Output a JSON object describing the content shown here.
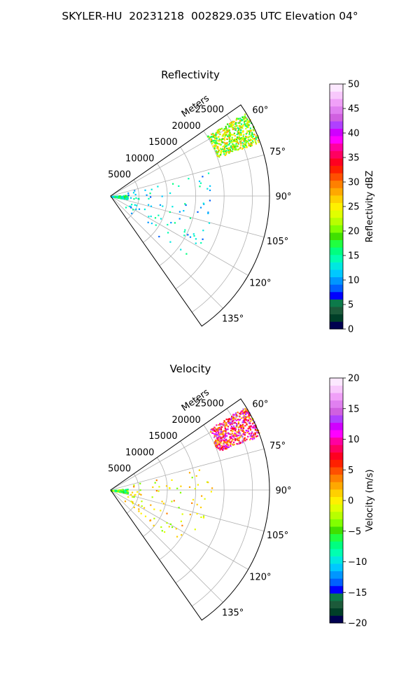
{
  "suptitle": "SKYLER-HU  20231218  002829.035 UTC Elevation 04°",
  "chart_data": [
    {
      "type": "polar-sector-scan",
      "title": "Reflectivity",
      "range_label": "Meters",
      "range_ticks": [
        5000,
        10000,
        15000,
        20000,
        25000
      ],
      "range_max": 28000,
      "azimuth_ticks": [
        "60°",
        "75°",
        "90°",
        "105°",
        "120°",
        "135°"
      ],
      "azimuth_range_deg": [
        55,
        145
      ],
      "colorbar": {
        "label": "Reflectivity dBZ",
        "min": 0,
        "max": 50,
        "ticks": [
          0,
          5,
          10,
          15,
          20,
          25,
          30,
          35,
          40,
          45,
          50
        ],
        "colors": [
          "#000050",
          "#003f28",
          "#1c5a3a",
          "#0c7a4a",
          "#0000ff",
          "#0060ff",
          "#0096ff",
          "#00c8ff",
          "#00e8e0",
          "#00ffb0",
          "#00ff80",
          "#20ff40",
          "#40e000",
          "#80ff00",
          "#b8ff00",
          "#e0ff00",
          "#fff000",
          "#ffd000",
          "#ffa800",
          "#ff8000",
          "#ff5000",
          "#ff2000",
          "#ff0020",
          "#ff0060",
          "#ff00a0",
          "#ff00ff",
          "#d000ff",
          "#b040ff",
          "#d060e0",
          "#e080f0",
          "#f0a0f8",
          "#f8c8fc",
          "#fce8ff"
        ]
      },
      "echoes": [
        {
          "region": "storm",
          "az": [
            58,
            70
          ],
          "range": [
            20000,
            28000
          ],
          "dbz": 22
        },
        {
          "region": "near-ground-clutter",
          "az": [
            85,
            100
          ],
          "range": [
            0,
            3000
          ],
          "dbz": 15
        },
        {
          "region": "scattered",
          "az": [
            75,
            130
          ],
          "range": [
            3000,
            18000
          ],
          "dbz": 12
        }
      ]
    },
    {
      "type": "polar-sector-scan",
      "title": "Velocity",
      "range_label": "Meters",
      "range_ticks": [
        5000,
        10000,
        15000,
        20000,
        25000
      ],
      "range_max": 28000,
      "azimuth_ticks": [
        "60°",
        "75°",
        "90°",
        "105°",
        "120°",
        "135°"
      ],
      "azimuth_range_deg": [
        55,
        145
      ],
      "colorbar": {
        "label": "Velocity (m/s)",
        "min": -20,
        "max": 20,
        "ticks": [
          -20,
          -15,
          -10,
          -5,
          0,
          5,
          10,
          15,
          20
        ],
        "colors": [
          "#000050",
          "#003f28",
          "#1c5a3a",
          "#0c7a4a",
          "#0000ff",
          "#0060ff",
          "#0096ff",
          "#00c8ff",
          "#00e8e0",
          "#00ffb0",
          "#00ff80",
          "#20ff40",
          "#40e000",
          "#80ff00",
          "#b8ff00",
          "#e0ff00",
          "#fff000",
          "#ffd000",
          "#ffa800",
          "#ff8000",
          "#ff5000",
          "#ff2000",
          "#ff0020",
          "#ff0060",
          "#ff00a0",
          "#ff00ff",
          "#d000ff",
          "#b040ff",
          "#d060e0",
          "#e080f0",
          "#f0a0f8",
          "#f8c8fc",
          "#fce8ff"
        ]
      },
      "echoes": [
        {
          "region": "storm",
          "az": [
            58,
            70
          ],
          "range": [
            20000,
            28000
          ],
          "ms": 8
        },
        {
          "region": "near-ground-clutter",
          "az": [
            85,
            100
          ],
          "range": [
            0,
            3000
          ],
          "ms": -5
        },
        {
          "region": "scattered",
          "az": [
            75,
            130
          ],
          "range": [
            3000,
            18000
          ],
          "ms": 0
        }
      ]
    }
  ]
}
